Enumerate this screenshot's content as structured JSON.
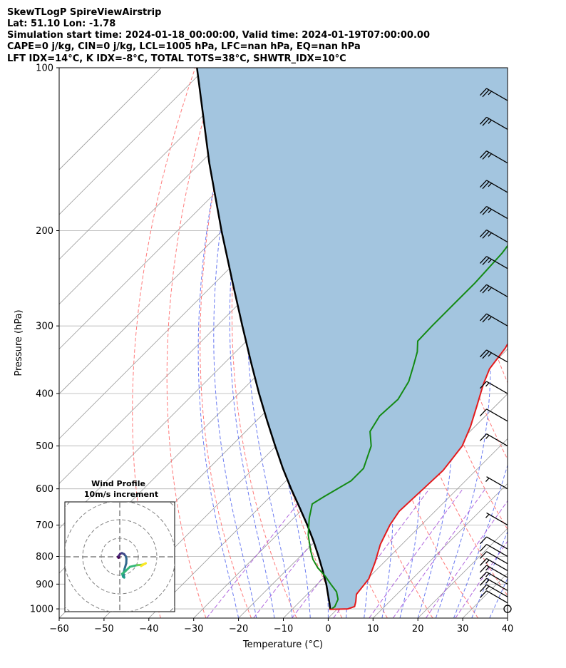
{
  "header": {
    "line1": "SkewTLogP SpireViewAirstrip",
    "line2": "Lat: 51.10   Lon: -1.78",
    "line3": "Simulation start time: 2024-01-18_00:00:00, Valid time: 2024-01-19T07:00:00.00",
    "line4": "CAPE=0 j/kg, CIN=0 j/kg, LCL=1005 hPa, LFC=nan hPa, EQ=nan hPa",
    "line5": "LFT IDX=14°C, K IDX=-8°C, TOTAL TOTS=38°C, SHWTR_IDX=10°C"
  },
  "chart_data": {
    "type": "skew-t log-p",
    "xlabel": "Temperature (°C)",
    "ylabel": "Pressure (hPa)",
    "xlim": [
      -60,
      40
    ],
    "ylim": [
      1040,
      100
    ],
    "x_ticks": [
      "−60",
      "−50",
      "−40",
      "−30",
      "−20",
      "−10",
      "0",
      "10",
      "20",
      "30",
      "40"
    ],
    "y_ticks": [
      "100",
      "200",
      "300",
      "400",
      "500",
      "600",
      "700",
      "800",
      "900",
      "1000"
    ],
    "y_tick_values": [
      100,
      200,
      300,
      400,
      500,
      600,
      700,
      800,
      900,
      1000
    ],
    "log_pressure": true,
    "grid": true,
    "colors": {
      "temperature": "#e41a1c",
      "dewpoint": "#138a13",
      "parcel": "#000000",
      "cape_fill": "#a3c5df",
      "dry_adiabat": "#ff6b6b",
      "moist_adiabat": "#5a6cf0",
      "mixing_ratio": "#a24bd8",
      "isotherm": "#999999"
    },
    "series": [
      {
        "kind": "temperature",
        "points": [
          [
            1002,
            -1.7
          ],
          [
            1000,
            2.3
          ],
          [
            990,
            3.3
          ],
          [
            970,
            2.5
          ],
          [
            940,
            1.0
          ],
          [
            880,
            0.3
          ],
          [
            820,
            -2.0
          ],
          [
            760,
            -4.8
          ],
          [
            700,
            -7.0
          ],
          [
            660,
            -8.0
          ],
          [
            600,
            -7.6
          ],
          [
            555,
            -7.3
          ],
          [
            500,
            -8.5
          ],
          [
            460,
            -11.0
          ],
          [
            420,
            -14.3
          ],
          [
            385,
            -17.5
          ],
          [
            360,
            -19.6
          ],
          [
            330,
            -20.7
          ],
          [
            300,
            -22.8
          ],
          [
            270,
            -24.0
          ],
          [
            250,
            -24.5
          ],
          [
            220,
            -25.0
          ],
          [
            200,
            -26.0
          ],
          [
            180,
            -29.0
          ],
          [
            160,
            -33.0
          ],
          [
            140,
            -38.0
          ],
          [
            120,
            -44.0
          ],
          [
            100,
            -52.0
          ]
        ]
      },
      {
        "kind": "dewpoint",
        "points": [
          [
            1002,
            -1.3
          ],
          [
            990,
            -1.1
          ],
          [
            960,
            -2.0
          ],
          [
            930,
            -4.0
          ],
          [
            900,
            -7.0
          ],
          [
            870,
            -10.0
          ],
          [
            840,
            -13.5
          ],
          [
            810,
            -16.5
          ],
          [
            780,
            -19.0
          ],
          [
            730,
            -23.0
          ],
          [
            680,
            -26.5
          ],
          [
            640,
            -29.0
          ],
          [
            620,
            -28.0
          ],
          [
            580,
            -25.5
          ],
          [
            550,
            -25.5
          ],
          [
            500,
            -28.8
          ],
          [
            470,
            -32.3
          ],
          [
            440,
            -33.6
          ],
          [
            410,
            -33.2
          ],
          [
            380,
            -34.8
          ],
          [
            355,
            -37.3
          ],
          [
            335,
            -39.5
          ],
          [
            320,
            -41.8
          ],
          [
            300,
            -42.0
          ],
          [
            280,
            -42.0
          ],
          [
            250,
            -42.0
          ],
          [
            220,
            -42.6
          ],
          [
            205,
            -43.5
          ],
          [
            190,
            -45.6
          ],
          [
            175,
            -48.5
          ],
          [
            160,
            -50.3
          ],
          [
            140,
            -52.0
          ],
          [
            120,
            -55.0
          ],
          [
            100,
            -61.0
          ]
        ]
      },
      {
        "kind": "parcel",
        "points": [
          [
            1002,
            -1.5
          ],
          [
            980,
            -2.8
          ],
          [
            950,
            -4.7
          ],
          [
            900,
            -8.0
          ],
          [
            850,
            -11.8
          ],
          [
            800,
            -15.9
          ],
          [
            750,
            -20.4
          ],
          [
            700,
            -25.4
          ],
          [
            650,
            -31.0
          ],
          [
            600,
            -37.1
          ],
          [
            550,
            -43.5
          ],
          [
            500,
            -50.2
          ],
          [
            450,
            -57.5
          ],
          [
            400,
            -65.5
          ],
          [
            350,
            -74.3
          ],
          [
            300,
            -84.3
          ],
          [
            250,
            -96.0
          ],
          [
            200,
            -110.2
          ],
          [
            150,
            -128.0
          ],
          [
            100,
            -152.0
          ]
        ]
      }
    ],
    "wind_barbs": [
      {
        "p": 1000,
        "speed_kt": 0
      },
      {
        "p": 975,
        "speed_kt": 10
      },
      {
        "p": 950,
        "speed_kt": 15
      },
      {
        "p": 925,
        "speed_kt": 15
      },
      {
        "p": 900,
        "speed_kt": 15
      },
      {
        "p": 875,
        "speed_kt": 15
      },
      {
        "p": 850,
        "speed_kt": 15
      },
      {
        "p": 825,
        "speed_kt": 10
      },
      {
        "p": 800,
        "speed_kt": 10
      },
      {
        "p": 775,
        "speed_kt": 10
      },
      {
        "p": 700,
        "speed_kt": 5
      },
      {
        "p": 600,
        "speed_kt": 5
      },
      {
        "p": 500,
        "speed_kt": 15
      },
      {
        "p": 450,
        "speed_kt": 10
      },
      {
        "p": 400,
        "speed_kt": 15
      },
      {
        "p": 350,
        "speed_kt": 25
      },
      {
        "p": 300,
        "speed_kt": 25
      },
      {
        "p": 265,
        "speed_kt": 25
      },
      {
        "p": 235,
        "speed_kt": 25
      },
      {
        "p": 210,
        "speed_kt": 25
      },
      {
        "p": 190,
        "speed_kt": 25
      },
      {
        "p": 170,
        "speed_kt": 25
      },
      {
        "p": 150,
        "speed_kt": 25
      },
      {
        "p": 130,
        "speed_kt": 25
      },
      {
        "p": 115,
        "speed_kt": 25
      }
    ],
    "hodograph": {
      "title": "Wind Profile",
      "subtitle": "10m/s increment",
      "ring_step_ms": 10,
      "rings": 3,
      "trace_uv": [
        [
          2.4,
          -11.2
        ],
        [
          1.8,
          -10.8
        ],
        [
          1.3,
          -9.2
        ],
        [
          3.0,
          -7.8
        ],
        [
          5.5,
          -5.4
        ],
        [
          9.4,
          -4.5
        ],
        [
          11.0,
          -4.4
        ],
        [
          12.2,
          -4.3
        ],
        [
          13.8,
          -3.7
        ],
        [
          14.0,
          -3.5
        ],
        [
          12.6,
          -4.3
        ],
        [
          11.5,
          -5.0
        ]
      ],
      "trace_uv_upper": [
        [
          2.4,
          -11.2
        ],
        [
          2.0,
          -9.0
        ],
        [
          2.6,
          -6.5
        ],
        [
          3.5,
          -3.5
        ],
        [
          3.6,
          -1.2
        ],
        [
          3.3,
          0.2
        ],
        [
          2.4,
          1.4
        ],
        [
          1.2,
          2.0
        ],
        [
          0.2,
          1.6
        ],
        [
          -0.6,
          0.4
        ],
        [
          -1.0,
          0.0
        ],
        [
          -0.7,
          -0.5
        ],
        [
          -0.2,
          -0.2
        ]
      ],
      "trace_colors": [
        "#440154",
        "#482878",
        "#3e4989",
        "#31688e",
        "#26828e",
        "#1f9e89",
        "#35b779",
        "#6ece58",
        "#b5de2b",
        "#fde725"
      ]
    }
  }
}
